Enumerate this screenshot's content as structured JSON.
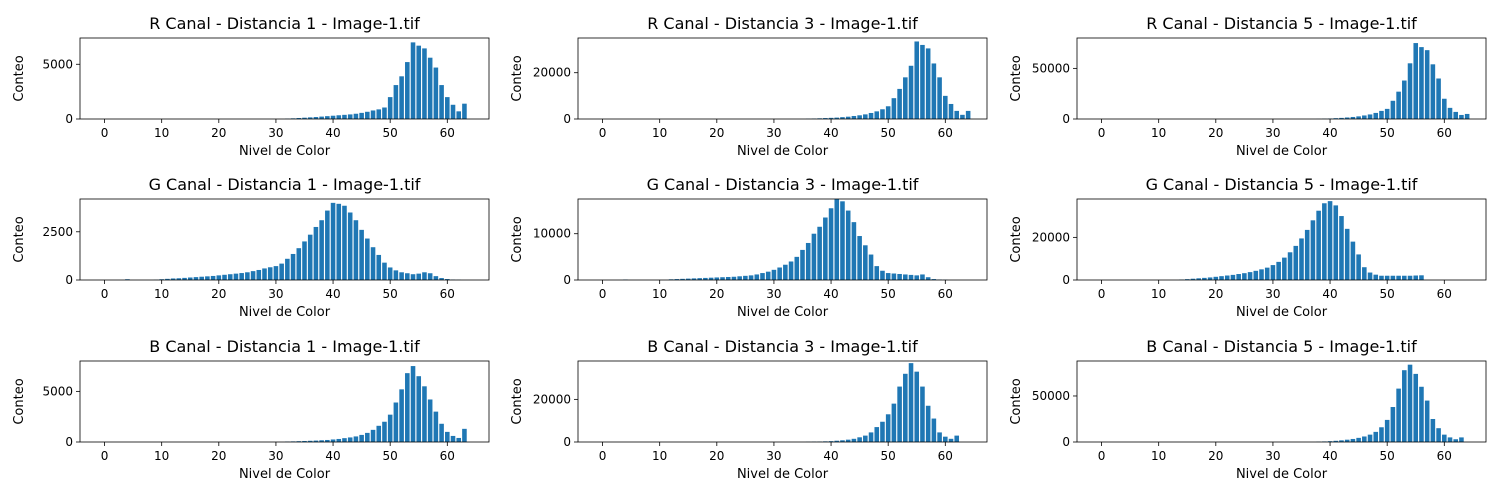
{
  "colors": {
    "bar": "#1f77b4",
    "axis": "#000000",
    "background": "#ffffff"
  },
  "chart_data": [
    {
      "type": "bar",
      "title": "R Canal - Distancia 1 - Image-1.tif",
      "xlabel": "Nivel de Color",
      "ylabel": "Conteo",
      "xlim": [
        -4.3,
        67.3
      ],
      "ylim": [
        0,
        7400
      ],
      "xticks": [
        0,
        10,
        20,
        30,
        40,
        50,
        60
      ],
      "yticks": [
        0,
        5000
      ],
      "ytick_labels": [
        "0",
        "5000"
      ],
      "values": [
        0,
        0,
        0,
        0,
        0,
        0,
        0,
        0,
        0,
        0,
        0,
        0,
        0,
        0,
        0,
        0,
        0,
        0,
        0,
        0,
        0,
        0,
        0,
        0,
        0,
        0,
        0,
        0,
        0,
        0,
        0,
        0,
        30,
        60,
        90,
        120,
        150,
        180,
        220,
        260,
        300,
        340,
        380,
        420,
        480,
        560,
        660,
        780,
        880,
        1050,
        2000,
        3100,
        3900,
        5200,
        7000,
        6700,
        6450,
        5600,
        4700,
        3100,
        2000,
        1300,
        700,
        1400
      ]
    },
    {
      "type": "bar",
      "title": "R Canal - Distancia 3 - Image-1.tif",
      "xlabel": "Nivel de Color",
      "ylabel": "Conteo",
      "xlim": [
        -4.3,
        67.3
      ],
      "ylim": [
        0,
        35000
      ],
      "xticks": [
        0,
        10,
        20,
        30,
        40,
        50,
        60
      ],
      "yticks": [
        0,
        20000
      ],
      "ytick_labels": [
        "0",
        "20000"
      ],
      "values": [
        0,
        0,
        0,
        0,
        0,
        0,
        0,
        0,
        0,
        0,
        0,
        0,
        0,
        0,
        0,
        0,
        0,
        0,
        0,
        0,
        0,
        0,
        0,
        0,
        0,
        0,
        0,
        0,
        0,
        0,
        0,
        0,
        0,
        0,
        0,
        0,
        100,
        200,
        300,
        400,
        500,
        600,
        800,
        1000,
        1300,
        1600,
        2000,
        2600,
        3300,
        4200,
        5500,
        9000,
        13000,
        18000,
        23000,
        33500,
        32000,
        30500,
        24000,
        18000,
        10000,
        6500,
        3500,
        1800,
        3500
      ]
    },
    {
      "type": "bar",
      "title": "R Canal - Distancia 5 - Image-1.tif",
      "xlabel": "Nivel de Color",
      "ylabel": "Conteo",
      "xlim": [
        -4.3,
        67.3
      ],
      "ylim": [
        0,
        80000
      ],
      "xticks": [
        0,
        10,
        20,
        30,
        40,
        50,
        60
      ],
      "yticks": [
        0,
        50000
      ],
      "ytick_labels": [
        "0",
        "50000"
      ],
      "values": [
        0,
        0,
        0,
        0,
        0,
        0,
        0,
        0,
        0,
        0,
        0,
        0,
        0,
        0,
        0,
        0,
        0,
        0,
        0,
        0,
        0,
        0,
        0,
        0,
        0,
        0,
        0,
        0,
        0,
        0,
        0,
        0,
        0,
        0,
        0,
        0,
        0,
        0,
        100,
        300,
        500,
        800,
        1100,
        1500,
        2000,
        2600,
        3500,
        4500,
        6000,
        8000,
        10000,
        18000,
        27000,
        38000,
        55000,
        75000,
        71000,
        68000,
        54000,
        40000,
        20000,
        11000,
        7000,
        4000,
        5000
      ]
    },
    {
      "type": "bar",
      "title": "G Canal - Distancia 1 - Image-1.tif",
      "xlabel": "Nivel de Color",
      "ylabel": "Conteo",
      "xlim": [
        -4.3,
        67.3
      ],
      "ylim": [
        0,
        4200
      ],
      "xticks": [
        0,
        10,
        20,
        30,
        40,
        50,
        60
      ],
      "yticks": [
        0,
        2500
      ],
      "ytick_labels": [
        "0",
        "2500"
      ],
      "values": [
        0,
        0,
        0,
        0,
        40,
        0,
        0,
        0,
        0,
        10,
        40,
        60,
        80,
        90,
        110,
        130,
        150,
        170,
        190,
        210,
        240,
        270,
        300,
        330,
        360,
        400,
        460,
        520,
        600,
        660,
        720,
        850,
        1100,
        1350,
        1650,
        2000,
        2350,
        2750,
        3100,
        3600,
        4000,
        3950,
        3850,
        3500,
        3100,
        2600,
        2150,
        1700,
        1300,
        900,
        650,
        500,
        400,
        350,
        300,
        330,
        400,
        350,
        200,
        100,
        50,
        20,
        10,
        0
      ]
    },
    {
      "type": "bar",
      "title": "G Canal - Distancia 3 - Image-1.tif",
      "xlabel": "Nivel de Color",
      "ylabel": "Conteo",
      "xlim": [
        -4.3,
        67.3
      ],
      "ylim": [
        0,
        17500
      ],
      "xticks": [
        0,
        10,
        20,
        30,
        40,
        50,
        60
      ],
      "yticks": [
        0,
        10000
      ],
      "ytick_labels": [
        "0",
        "10000"
      ],
      "values": [
        0,
        0,
        0,
        0,
        100,
        0,
        0,
        0,
        0,
        0,
        0,
        0,
        150,
        200,
        250,
        300,
        350,
        400,
        450,
        500,
        550,
        600,
        650,
        700,
        800,
        900,
        1000,
        1200,
        1500,
        1800,
        2200,
        2700,
        3300,
        4000,
        5000,
        6500,
        8000,
        10000,
        11500,
        13500,
        15500,
        17500,
        17000,
        15000,
        12500,
        9500,
        7500,
        5500,
        3000,
        2000,
        1500,
        1400,
        1300,
        1200,
        1100,
        1000,
        1200,
        600,
        200,
        100,
        50,
        0,
        0,
        0
      ]
    },
    {
      "type": "bar",
      "title": "G Canal - Distancia 5 - Image-1.tif",
      "xlabel": "Nivel de Color",
      "ylabel": "Conteo",
      "xlim": [
        -4.3,
        67.3
      ],
      "ylim": [
        0,
        38000
      ],
      "xticks": [
        0,
        10,
        20,
        30,
        40,
        50,
        60
      ],
      "yticks": [
        0,
        20000
      ],
      "ytick_labels": [
        "0",
        "20000"
      ],
      "values": [
        0,
        0,
        0,
        0,
        0,
        0,
        0,
        0,
        0,
        0,
        0,
        0,
        0,
        0,
        200,
        400,
        600,
        800,
        1000,
        1200,
        1500,
        1800,
        2100,
        2400,
        2800,
        3200,
        3700,
        4300,
        5000,
        5800,
        7000,
        8500,
        10500,
        13000,
        16000,
        19500,
        23500,
        28000,
        32500,
        36000,
        37000,
        35000,
        30000,
        24000,
        18000,
        12000,
        6000,
        3500,
        2500,
        2000,
        2000,
        2000,
        2000,
        2000,
        2000,
        2100,
        2200,
        0,
        0,
        0,
        0,
        0,
        0,
        0
      ]
    },
    {
      "type": "bar",
      "title": "B Canal - Distancia 1 - Image-1.tif",
      "xlabel": "Nivel de Color",
      "ylabel": "Conteo",
      "xlim": [
        -4.3,
        67.3
      ],
      "ylim": [
        0,
        8000
      ],
      "xticks": [
        0,
        10,
        20,
        30,
        40,
        50,
        60
      ],
      "yticks": [
        0,
        5000
      ],
      "ytick_labels": [
        "0",
        "5000"
      ],
      "values": [
        0,
        0,
        0,
        0,
        0,
        0,
        0,
        0,
        0,
        0,
        0,
        0,
        0,
        0,
        0,
        0,
        0,
        0,
        0,
        0,
        0,
        0,
        0,
        0,
        0,
        0,
        0,
        0,
        0,
        0,
        0,
        0,
        40,
        60,
        80,
        100,
        120,
        140,
        170,
        200,
        250,
        300,
        380,
        450,
        550,
        700,
        900,
        1200,
        1600,
        2000,
        2700,
        3900,
        5200,
        6800,
        7500,
        6500,
        5500,
        4200,
        3000,
        1800,
        1000,
        600,
        400,
        1300
      ]
    },
    {
      "type": "bar",
      "title": "B Canal - Distancia 3 - Image-1.tif",
      "xlabel": "Nivel de Color",
      "ylabel": "Conteo",
      "xlim": [
        -4.3,
        67.3
      ],
      "ylim": [
        0,
        38000
      ],
      "xticks": [
        0,
        10,
        20,
        30,
        40,
        50,
        60
      ],
      "yticks": [
        0,
        20000
      ],
      "ytick_labels": [
        "0",
        "20000"
      ],
      "values": [
        0,
        0,
        0,
        0,
        0,
        0,
        0,
        0,
        0,
        0,
        0,
        0,
        0,
        0,
        0,
        0,
        0,
        0,
        0,
        0,
        0,
        0,
        0,
        0,
        0,
        0,
        0,
        0,
        0,
        0,
        0,
        0,
        0,
        0,
        0,
        0,
        100,
        150,
        200,
        300,
        400,
        600,
        800,
        1100,
        1500,
        2200,
        3000,
        4500,
        7000,
        9500,
        13000,
        18000,
        26000,
        32000,
        37000,
        33000,
        26000,
        17000,
        11000,
        4500,
        2500,
        1500,
        3000,
        0
      ]
    },
    {
      "type": "bar",
      "title": "B Canal - Distancia 5 - Image-1.tif",
      "xlabel": "Nivel de Color",
      "ylabel": "Conteo",
      "xlim": [
        -4.3,
        67.3
      ],
      "ylim": [
        0,
        88000
      ],
      "xticks": [
        0,
        10,
        20,
        30,
        40,
        50,
        60
      ],
      "yticks": [
        0,
        50000
      ],
      "ytick_labels": [
        "0",
        "50000"
      ],
      "values": [
        0,
        0,
        0,
        0,
        0,
        0,
        0,
        0,
        0,
        0,
        0,
        0,
        0,
        0,
        0,
        0,
        0,
        0,
        0,
        0,
        0,
        0,
        0,
        0,
        0,
        0,
        0,
        0,
        0,
        0,
        0,
        0,
        0,
        0,
        0,
        0,
        0,
        0,
        300,
        600,
        900,
        1300,
        1800,
        2500,
        3300,
        4500,
        6000,
        8000,
        11000,
        16000,
        24000,
        38000,
        58000,
        78000,
        84000,
        74000,
        60000,
        45000,
        25000,
        15000,
        8000,
        5000,
        3000,
        5000
      ]
    }
  ]
}
